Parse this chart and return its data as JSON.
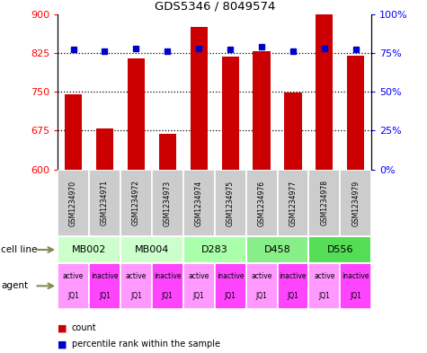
{
  "title": "GDS5346 / 8049574",
  "samples": [
    "GSM1234970",
    "GSM1234971",
    "GSM1234972",
    "GSM1234973",
    "GSM1234974",
    "GSM1234975",
    "GSM1234976",
    "GSM1234977",
    "GSM1234978",
    "GSM1234979"
  ],
  "counts": [
    745,
    680,
    815,
    668,
    875,
    818,
    828,
    748,
    900,
    820
  ],
  "percentiles": [
    77,
    76,
    78,
    76,
    78,
    77,
    79,
    76,
    78,
    77
  ],
  "cell_lines": [
    {
      "label": "MB002",
      "cols": [
        0,
        1
      ],
      "color": "#ccffcc"
    },
    {
      "label": "MB004",
      "cols": [
        2,
        3
      ],
      "color": "#ccffcc"
    },
    {
      "label": "D283",
      "cols": [
        4,
        5
      ],
      "color": "#aaffaa"
    },
    {
      "label": "D458",
      "cols": [
        6,
        7
      ],
      "color": "#88ee88"
    },
    {
      "label": "D556",
      "cols": [
        8,
        9
      ],
      "color": "#55dd55"
    }
  ],
  "agents": [
    "active",
    "inactive",
    "active",
    "inactive",
    "active",
    "inactive",
    "active",
    "inactive",
    "active",
    "inactive"
  ],
  "agent_sublabels": [
    "JQ1",
    "JQ1",
    "JQ1",
    "JQ1",
    "JQ1",
    "JQ1",
    "JQ1",
    "JQ1",
    "JQ1",
    "JQ1"
  ],
  "active_color": "#ff99ff",
  "inactive_color": "#ff44ff",
  "bar_color": "#cc0000",
  "dot_color": "#0000cc",
  "ylim_left": [
    600,
    900
  ],
  "ylim_right": [
    0,
    100
  ],
  "yticks_left": [
    600,
    675,
    750,
    825,
    900
  ],
  "yticks_right": [
    0,
    25,
    50,
    75,
    100
  ],
  "ytick_labels_right": [
    "0%",
    "25%",
    "50%",
    "75%",
    "100%"
  ]
}
